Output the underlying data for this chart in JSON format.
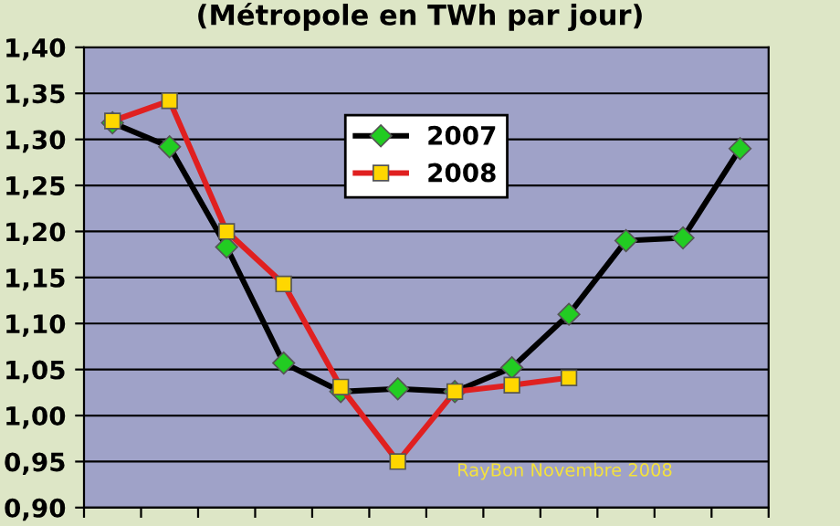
{
  "chart_data": {
    "type": "line",
    "title": "(Métropole en TWh par jour)",
    "categories": [
      null,
      null,
      null,
      null,
      null,
      null,
      null,
      null,
      null,
      null,
      null,
      null
    ],
    "series": [
      {
        "name": "2007",
        "color": "#000000",
        "marker": "diamond",
        "values": [
          1.318,
          1.292,
          1.183,
          1.057,
          1.026,
          1.029,
          1.026,
          1.052,
          1.11,
          1.19,
          1.193,
          1.29
        ]
      },
      {
        "name": "2008",
        "color": "#e02020",
        "marker": "square",
        "values": [
          1.32,
          1.342,
          1.2,
          1.143,
          1.031,
          0.95,
          1.026,
          1.033,
          1.041,
          null,
          null,
          null
        ]
      }
    ],
    "ylim": [
      0.9,
      1.4
    ],
    "yticks": [
      {
        "value": 0.9,
        "label": "0,90"
      },
      {
        "value": 0.95,
        "label": "0,95"
      },
      {
        "value": 1.0,
        "label": "1,00"
      },
      {
        "value": 1.05,
        "label": "1,05"
      },
      {
        "value": 1.1,
        "label": "1,10"
      },
      {
        "value": 1.15,
        "label": "1,15"
      },
      {
        "value": 1.2,
        "label": "1,20"
      },
      {
        "value": 1.25,
        "label": "1,25"
      },
      {
        "value": 1.3,
        "label": "1,30"
      },
      {
        "value": 1.35,
        "label": "1,35"
      },
      {
        "value": 1.4,
        "label": "1,40"
      }
    ],
    "grid": "y",
    "legend": "top",
    "tick_labels": "y",
    "line_style": "solid",
    "annotations": [
      {
        "text": "RayBon Novembre 2008"
      }
    ]
  }
}
